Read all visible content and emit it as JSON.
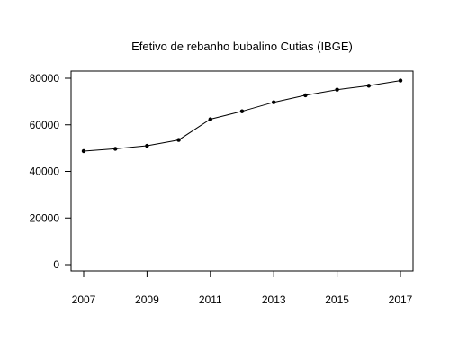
{
  "chart_data": {
    "type": "line",
    "title": "Efetivo de rebanho bubalino Cutias (IBGE)",
    "xlabel": "",
    "ylabel": "",
    "x": [
      2007,
      2008,
      2009,
      2010,
      2011,
      2012,
      2013,
      2014,
      2015,
      2016,
      2017
    ],
    "series": [
      {
        "values": [
          48700,
          49700,
          51000,
          53500,
          62400,
          65800,
          69700,
          72700,
          75100,
          76800,
          79000
        ]
      }
    ],
    "xlim": [
      2007,
      2017
    ],
    "ylim": [
      0,
      80000
    ],
    "xticks": [
      2007,
      2009,
      2011,
      2013,
      2015,
      2017
    ],
    "yticks": [
      0,
      20000,
      40000,
      60000,
      80000
    ],
    "grid": false,
    "legend": "none",
    "colors": {
      "line": "#000000",
      "points": "#000000"
    }
  }
}
